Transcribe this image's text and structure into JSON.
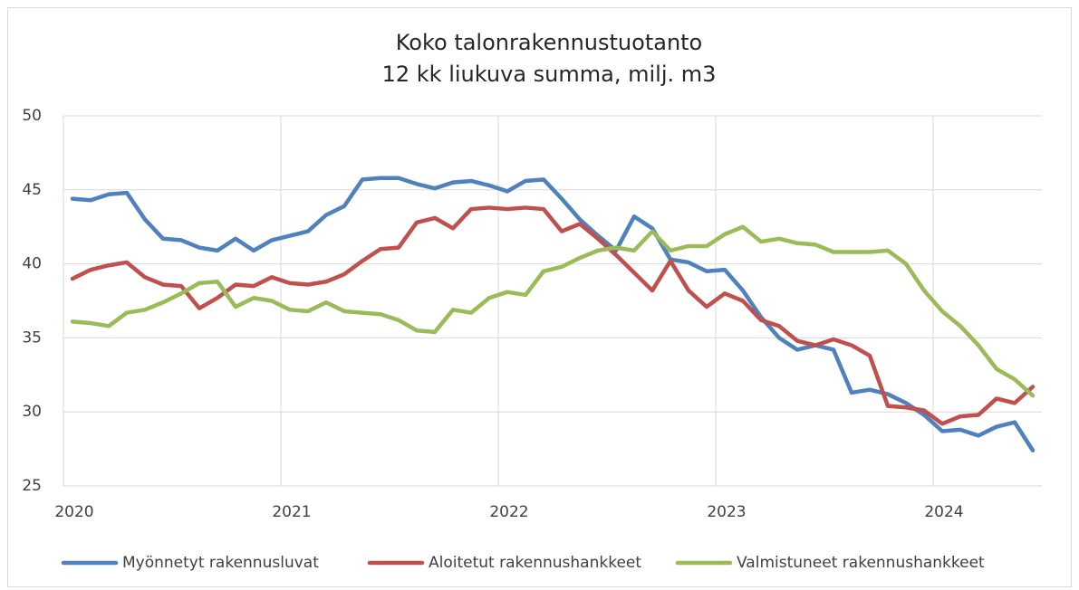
{
  "chart_data": {
    "type": "line",
    "title": "Koko talonrakennustuotanto",
    "subtitle": "12 kk liukuva summa, milj. m3",
    "categories": [
      "2020",
      null,
      null,
      null,
      null,
      null,
      null,
      null,
      null,
      null,
      null,
      null,
      "2021",
      null,
      null,
      null,
      null,
      null,
      null,
      null,
      null,
      null,
      null,
      null,
      "2022",
      null,
      null,
      null,
      null,
      null,
      null,
      null,
      null,
      null,
      null,
      null,
      "2023",
      null,
      null,
      null,
      null,
      null,
      null,
      null,
      null,
      null,
      null,
      null,
      "2024",
      null,
      null,
      null,
      null,
      null
    ],
    "ylim": [
      25,
      50
    ],
    "yticks": [
      25,
      30,
      35,
      40,
      45,
      50
    ],
    "grid": true,
    "legend": "bottom",
    "series": [
      {
        "name": "Myönnetyt rakennusluvat",
        "color": "#4f81bd",
        "values": [
          44.4,
          44.3,
          44.7,
          44.8,
          43.0,
          41.7,
          41.6,
          41.1,
          40.9,
          41.7,
          40.9,
          41.6,
          41.9,
          42.2,
          43.3,
          43.9,
          45.7,
          45.8,
          45.8,
          45.4,
          45.1,
          45.5,
          45.6,
          45.3,
          44.9,
          45.6,
          45.7,
          44.4,
          43.0,
          41.9,
          40.9,
          43.2,
          42.4,
          40.3,
          40.1,
          39.5,
          39.6,
          38.2,
          36.4,
          35.0,
          34.2,
          34.5,
          34.2,
          31.3,
          31.5,
          31.2,
          30.6,
          29.8,
          28.7,
          28.8,
          28.4,
          29.0,
          29.3,
          27.4
        ]
      },
      {
        "name": "Aloitetut rakennushankkeet",
        "color": "#c0504d",
        "values": [
          39.0,
          39.6,
          39.9,
          40.1,
          39.1,
          38.6,
          38.5,
          37.0,
          37.7,
          38.6,
          38.5,
          39.1,
          38.7,
          38.6,
          38.8,
          39.3,
          40.2,
          41.0,
          41.1,
          42.8,
          43.1,
          42.4,
          43.7,
          43.8,
          43.7,
          43.8,
          43.7,
          42.2,
          42.7,
          41.7,
          40.6,
          39.4,
          38.2,
          40.2,
          38.2,
          37.1,
          38.0,
          37.5,
          36.2,
          35.8,
          34.8,
          34.5,
          34.9,
          34.5,
          33.8,
          30.4,
          30.3,
          30.1,
          29.2,
          29.7,
          29.8,
          30.9,
          30.6,
          31.7
        ]
      },
      {
        "name": "Valmistuneet rakennushankkeet",
        "color": "#9bbb59",
        "values": [
          36.1,
          36.0,
          35.8,
          36.7,
          36.9,
          37.4,
          38.0,
          38.7,
          38.8,
          37.1,
          37.7,
          37.5,
          36.9,
          36.8,
          37.4,
          36.8,
          36.7,
          36.6,
          36.2,
          35.5,
          35.4,
          36.9,
          36.7,
          37.7,
          38.1,
          37.9,
          39.5,
          39.8,
          40.4,
          40.9,
          41.1,
          40.9,
          42.2,
          40.9,
          41.2,
          41.2,
          42.0,
          42.5,
          41.5,
          41.7,
          41.4,
          41.3,
          40.8,
          40.8,
          40.8,
          40.9,
          40.0,
          38.2,
          36.8,
          35.8,
          34.5,
          32.9,
          32.2,
          31.1
        ]
      }
    ]
  }
}
